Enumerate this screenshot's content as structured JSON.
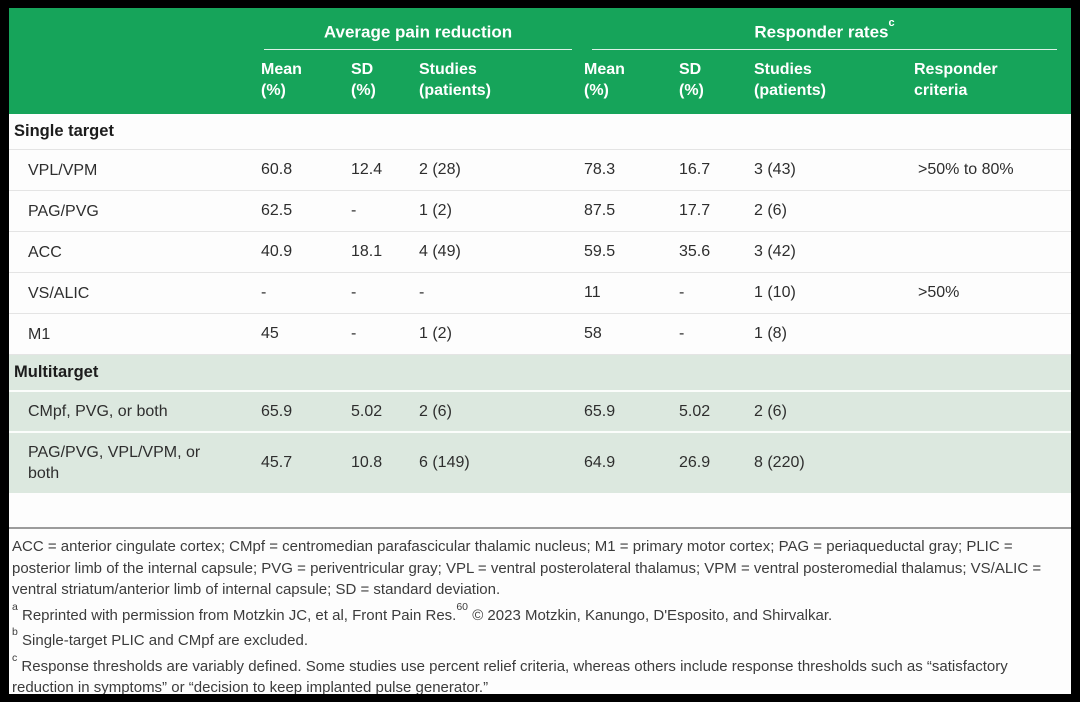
{
  "colors": {
    "header_green": "#16A45A",
    "band_green": "#DCE8DF",
    "header_text": "#FFFFFF",
    "body_text": "#2E2E2E",
    "footnote_text": "#3C3C3C",
    "row_divider": "#E4E4E4",
    "footnote_divider": "#9C9C9C",
    "page_bg": "#FDFDFD",
    "frame_black": "#000000"
  },
  "header": {
    "groups": [
      {
        "label": "Average pain reduction",
        "sup": ""
      },
      {
        "label": "Responder rates",
        "sup": "c"
      }
    ],
    "columns": [
      {
        "key": "mean-avg",
        "l1": "Mean",
        "l2": "(%)"
      },
      {
        "key": "sd-avg",
        "l1": "SD",
        "l2": "(%)"
      },
      {
        "key": "studies-avg",
        "l1": "Studies",
        "l2": "(patients)"
      },
      {
        "key": "mean-resp",
        "l1": "Mean",
        "l2": "(%)"
      },
      {
        "key": "sd-resp",
        "l1": "SD",
        "l2": "(%)"
      },
      {
        "key": "studies-resp",
        "l1": "Studies",
        "l2": "(patients)"
      },
      {
        "key": "responder-criteria",
        "l1": "Responder",
        "l2": "criteria"
      }
    ]
  },
  "sections": [
    {
      "label": "Single target",
      "theme": "white",
      "rows": [
        {
          "target": "VPL/VPM",
          "values": [
            "60.8",
            "12.4",
            "2 (28)",
            "78.3",
            "16.7",
            "3 (43)",
            ">50% to 80%"
          ]
        },
        {
          "target": "PAG/PVG",
          "values": [
            "62.5",
            "-",
            "1 (2)",
            "87.5",
            "17.7",
            "2 (6)",
            ""
          ]
        },
        {
          "target": "ACC",
          "values": [
            "40.9",
            "18.1",
            "4 (49)",
            "59.5",
            "35.6",
            "3 (42)",
            ""
          ]
        },
        {
          "target": "VS/ALIC",
          "values": [
            "-",
            "-",
            "-",
            "11",
            "-",
            "1 (10)",
            ">50%"
          ]
        },
        {
          "target": "M1",
          "values": [
            "45",
            "-",
            "1 (2)",
            "58",
            "-",
            "1 (8)",
            ""
          ]
        }
      ]
    },
    {
      "label": "Multitarget",
      "theme": "green",
      "rows": [
        {
          "target": "CMpf, PVG, or both",
          "values": [
            "65.9",
            "5.02",
            "2 (6)",
            "65.9",
            "5.02",
            "2 (6)",
            ""
          ]
        },
        {
          "target": "PAG/PVG, VPL/VPM, or both",
          "values": [
            "45.7",
            "10.8",
            "6 (149)",
            "64.9",
            "26.9",
            "8 (220)",
            ""
          ]
        }
      ]
    }
  ],
  "footnotes": [
    {
      "parts": [
        {
          "t": "ACC = anterior cingulate cortex; CMpf = centromedian parafascicular thalamic nucleus; M1 = primary motor cortex; PAG = periaqueductal gray; PLIC = posterior limb of the internal capsule; PVG = periventricular gray; VPL = ventral posterolateral thalamus; VPM = ventral posteromedial thalamus; VS/ALIC = ventral striatum/anterior limb of internal capsule; SD = standard deviation."
        }
      ]
    },
    {
      "parts": [
        {
          "s": "a"
        },
        {
          "t": " Reprinted with permission from Motzkin JC, et al, Front Pain Res."
        },
        {
          "s": "60"
        },
        {
          "t": " © 2023 Motzkin, Kanungo, D'Esposito, and Shirvalkar."
        }
      ]
    },
    {
      "parts": [
        {
          "s": "b"
        },
        {
          "t": " Single-target PLIC and CMpf are excluded."
        }
      ]
    },
    {
      "parts": [
        {
          "s": "c"
        },
        {
          "t": " Response thresholds are variably defined. Some studies use percent relief criteria, whereas others include response thresholds such as “satisfactory reduction in symptoms” or “decision to keep implanted pulse generator.”"
        }
      ]
    }
  ]
}
